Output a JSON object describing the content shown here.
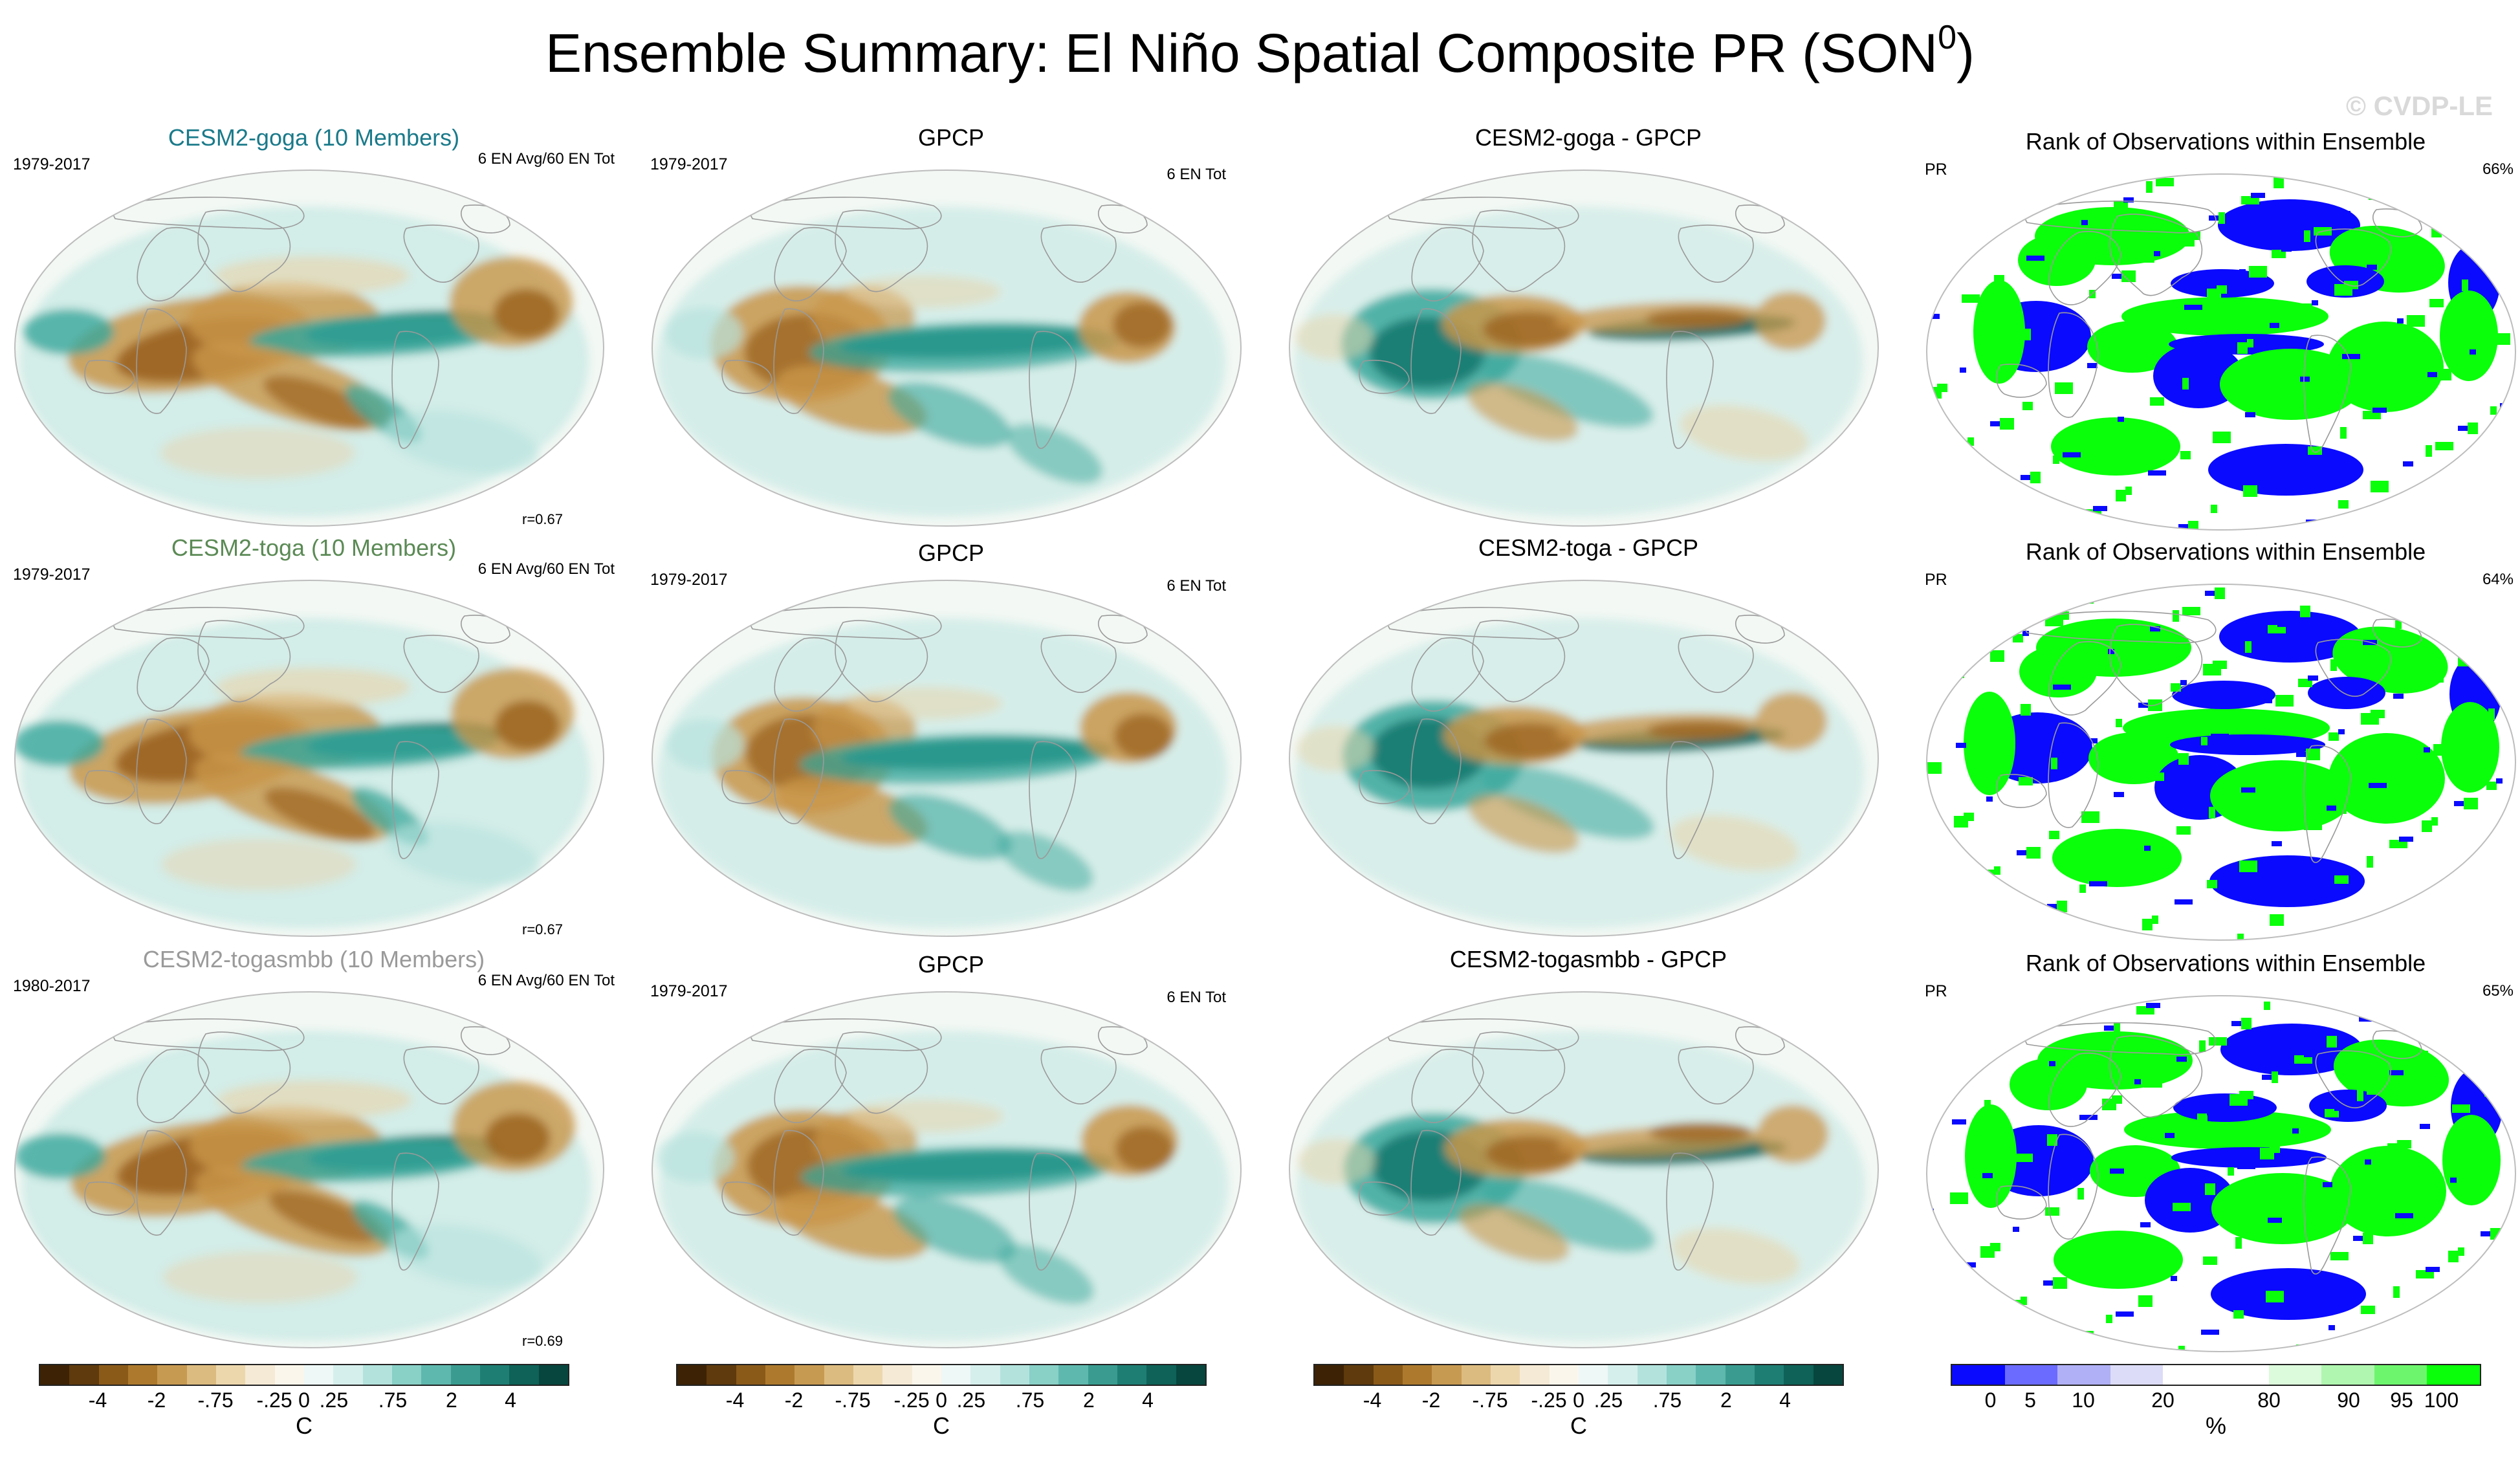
{
  "title": "Ensemble Summary: El Niño Spatial Composite PR (SON",
  "title_superscript": "0",
  "title_close": ")",
  "watermark": "© CVDP-LE",
  "rows": [
    {
      "model": {
        "title": "CESM2-goga (10 Members)",
        "title_color": "#1a7a8a",
        "years": "1979-2017",
        "events": "6 EN Avg/60 EN Tot",
        "corr": "r=0.67"
      },
      "obs": {
        "title": "GPCP",
        "years": "1979-2017",
        "events": "6 EN Tot"
      },
      "diff": {
        "title": "CESM2-goga - GPCP"
      },
      "rank": {
        "title": "Rank of Observations within Ensemble",
        "var": "PR",
        "pct": "66%"
      }
    },
    {
      "model": {
        "title": "CESM2-toga (10 Members)",
        "title_color": "#5b8a55",
        "years": "1979-2017",
        "events": "6 EN Avg/60 EN Tot",
        "corr": "r=0.67"
      },
      "obs": {
        "title": "GPCP",
        "years": "1979-2017",
        "events": "6 EN Tot"
      },
      "diff": {
        "title": "CESM2-toga - GPCP"
      },
      "rank": {
        "title": "Rank of Observations within Ensemble",
        "var": "PR",
        "pct": "64%"
      }
    },
    {
      "model": {
        "title": "CESM2-togasmbb (10 Members)",
        "title_color": "#9a9a9a",
        "years": "1980-2017",
        "events": "6 EN Avg/60 EN Tot",
        "corr": "r=0.69"
      },
      "obs": {
        "title": "GPCP",
        "years": "1979-2017",
        "events": "6 EN Tot"
      },
      "diff": {
        "title": "CESM2-togasmbb - GPCP"
      },
      "rank": {
        "title": "Rank of Observations within Ensemble",
        "var": "PR",
        "pct": "65%"
      }
    }
  ],
  "colorbar_main": {
    "unit": "C",
    "colors": [
      "#3d2205",
      "#5e3a0c",
      "#8a5a19",
      "#ad7a2d",
      "#c79a52",
      "#dcbb80",
      "#ecd7ad",
      "#f5ead5",
      "#fbf6ec",
      "#eef8f7",
      "#d5efec",
      "#b3e2dc",
      "#89d0c7",
      "#5fb8ad",
      "#3a9c91",
      "#1e7e74",
      "#0e6258",
      "#06463e"
    ],
    "tick_labels": [
      "-4",
      "-2",
      "-.75",
      "-.25",
      "0",
      ".25",
      ".75",
      "2",
      "4"
    ]
  },
  "colorbar_rank": {
    "unit": "%",
    "colors": [
      "#0a0aff",
      "#6b6bff",
      "#b0b0f6",
      "#dcdcf8",
      "#ffffff",
      "#ffffff",
      "#dcfadc",
      "#b0f6b0",
      "#6df66d",
      "#0aff0a"
    ],
    "tick_labels": [
      "0",
      "5",
      "10",
      "20",
      "80",
      "90",
      "95",
      "100"
    ]
  },
  "map_colors": {
    "ocean": "#f3f8f4",
    "land_outline": "#9a9a9a",
    "dry_strong": "#9c6420",
    "dry_mid": "#c9964a",
    "dry_light": "#ead3a8",
    "wet_strong": "#07695f",
    "wet_mid": "#3aa89c",
    "wet_light": "#b8e3de",
    "rank_low": "#0a0aff",
    "rank_high": "#0aff0a"
  }
}
